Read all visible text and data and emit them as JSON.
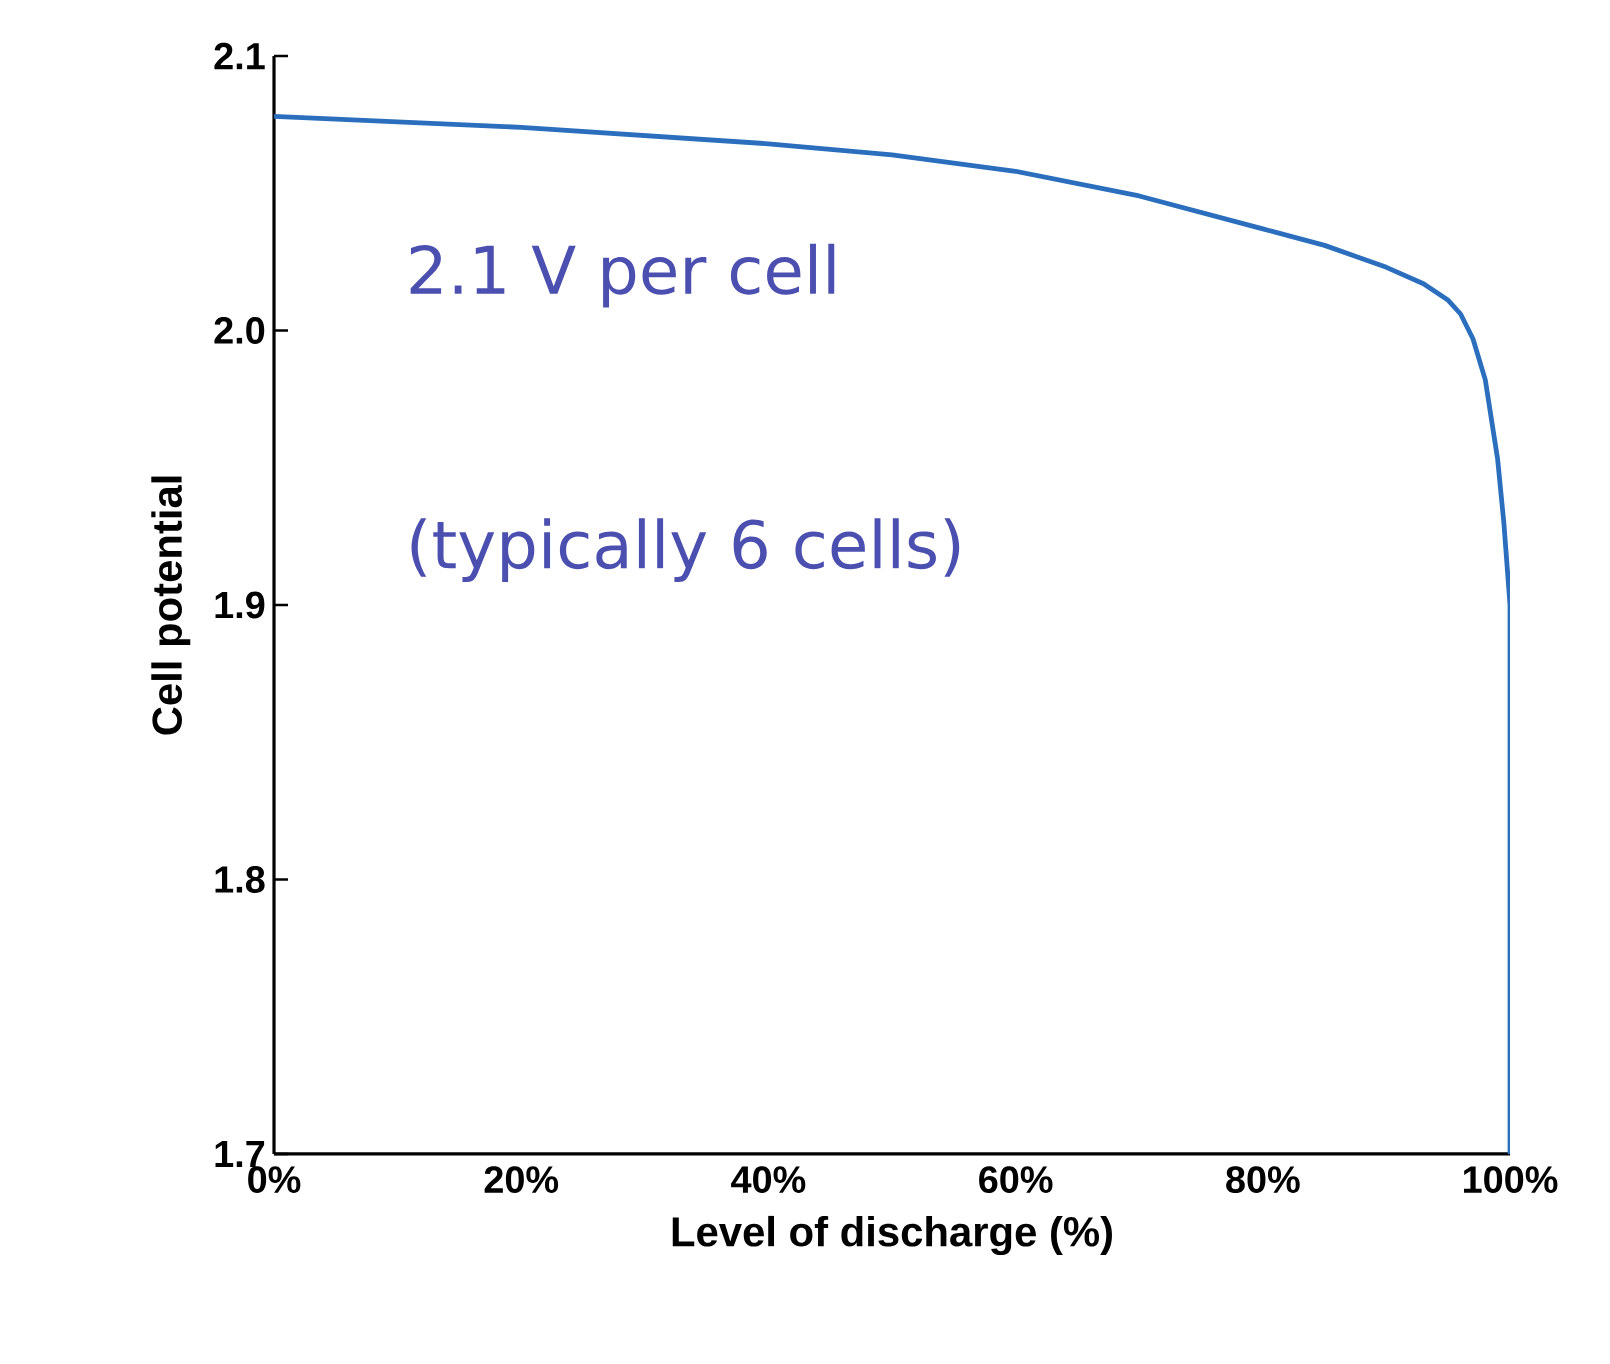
{
  "chart_data": {
    "type": "line",
    "xlabel": "Level of discharge (%)",
    "ylabel": "Cell potential",
    "annotations": [
      "2.1 V per cell",
      "(typically 6 cells)"
    ],
    "series": [
      {
        "color": "#2a6ebd",
        "x": [
          0,
          10,
          20,
          30,
          40,
          50,
          60,
          70,
          80,
          85,
          90,
          93,
          95,
          96,
          97,
          98,
          99,
          99.5,
          100,
          100
        ],
        "values": [
          2.078,
          2.076,
          2.074,
          2.071,
          2.068,
          2.064,
          2.058,
          2.049,
          2.037,
          2.031,
          2.023,
          2.017,
          2.011,
          2.006,
          1.997,
          1.982,
          1.953,
          1.93,
          1.9,
          1.7
        ]
      }
    ],
    "xlim": [
      0,
      100
    ],
    "ylim": [
      1.7,
      2.1
    ],
    "xticks": [
      {
        "value": 0,
        "label": "0%"
      },
      {
        "value": 20,
        "label": "20%"
      },
      {
        "value": 40,
        "label": "40%"
      },
      {
        "value": 60,
        "label": "60%"
      },
      {
        "value": 80,
        "label": "80%"
      },
      {
        "value": 100,
        "label": "100%"
      }
    ],
    "yticks": [
      {
        "value": 1.7,
        "label": "1.7"
      },
      {
        "value": 1.8,
        "label": "1.8"
      },
      {
        "value": 1.9,
        "label": "1.9"
      },
      {
        "value": 2.0,
        "label": "2.0"
      },
      {
        "value": 2.1,
        "label": "2.1"
      }
    ],
    "line_style": "solid",
    "marker": "none"
  }
}
